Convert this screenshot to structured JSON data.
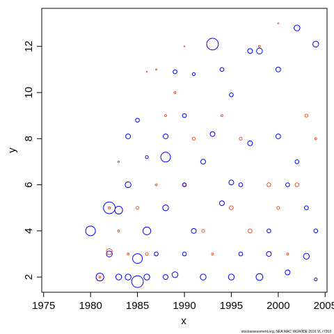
{
  "chart_data": {
    "type": "scatter",
    "x_label": "x",
    "y_label": "y",
    "footer": "stockassessment.org, NEA MAC WGWIDE 2016 VL r7263",
    "xlim": [
      1974.8,
      2005.2
    ],
    "ylim": [
      1.34,
      13.65
    ],
    "xticks": [
      1975,
      1980,
      1985,
      1990,
      1995,
      2000,
      2005
    ],
    "yticks": [
      2,
      4,
      6,
      8,
      10,
      12
    ],
    "series": [
      {
        "color": "#0000ff",
        "x": [
          1980,
          1981,
          1982,
          1982,
          1983,
          1983,
          1984,
          1984,
          1984,
          1985,
          1985,
          1985,
          1986,
          1986,
          1988,
          1988,
          1988,
          1988,
          1989,
          1989,
          1990,
          1990,
          1991,
          1991,
          1992,
          1992,
          1993,
          1993,
          1994,
          1994,
          1995,
          1995,
          1996,
          1996,
          1997,
          1997,
          1998,
          1998,
          1999,
          2000,
          2000,
          2001,
          2001,
          2002,
          2002,
          2003,
          2004,
          2004,
          2004,
          1987,
          1986,
          1990,
          1995,
          1999,
          2003
        ],
        "y": [
          4,
          2,
          3,
          5,
          2,
          4.9,
          2,
          6,
          8.1,
          1.8,
          2.8,
          8.8,
          4,
          7.2,
          2,
          5,
          7.2,
          8.1,
          2.1,
          10.9,
          3,
          6,
          4,
          10.8,
          2,
          7,
          12.1,
          8.2,
          11,
          5.2,
          2,
          9.9,
          3,
          6,
          7.8,
          11.8,
          2,
          11.8,
          4,
          8.1,
          11,
          2.2,
          6,
          12.8,
          7,
          2.9,
          12.1,
          4,
          1.9,
          3,
          2,
          9,
          6.1,
          3,
          5
        ],
        "size": [
          5,
          4,
          3,
          6,
          3,
          4,
          3,
          3,
          2.5,
          6,
          5,
          2,
          4,
          1.5,
          2.5,
          3,
          5,
          2.5,
          3,
          2,
          2,
          2,
          2.5,
          1.5,
          3,
          2.5,
          6,
          2.5,
          2,
          2.5,
          3,
          2,
          2,
          2,
          2.5,
          2.5,
          3.5,
          3,
          2,
          2.5,
          2.5,
          2.5,
          2,
          3,
          2,
          3,
          3,
          2,
          1.5,
          2,
          3,
          2,
          2.5,
          2.5,
          2
        ]
      },
      {
        "color": "#e8502a",
        "x": [
          1981,
          1982,
          1982,
          1983,
          1984,
          1985,
          1986,
          1987,
          1988,
          1989,
          1990,
          1991,
          1992,
          1993,
          1994,
          1995,
          1996,
          1997,
          1998,
          1999,
          2000,
          2001,
          2002,
          2003,
          2004,
          1986,
          1983,
          1987,
          1990,
          2000
        ],
        "y": [
          2,
          5,
          3.1,
          4,
          3,
          5,
          10.9,
          6,
          9,
          10,
          6,
          8,
          4,
          3,
          9,
          5,
          8,
          4,
          12,
          6,
          5,
          3,
          6,
          9,
          8,
          3,
          7,
          11,
          12,
          13
        ],
        "size": [
          1,
          1,
          3,
          1,
          1,
          1.5,
          0.5,
          1,
          1,
          1,
          1.5,
          1.5,
          1.5,
          1,
          1,
          2,
          1.5,
          2,
          1,
          2,
          1.5,
          1,
          2,
          1.5,
          1,
          1.5,
          0.8,
          0.6,
          0.5,
          0.5
        ]
      }
    ]
  }
}
